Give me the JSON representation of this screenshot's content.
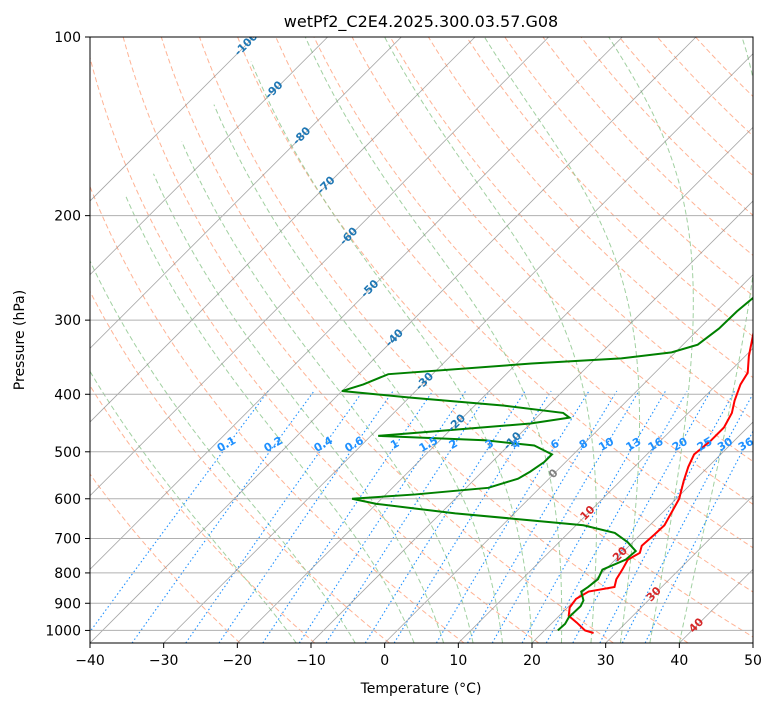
{
  "chart_data": {
    "type": "line",
    "subtype": "skew-t log-p",
    "title": "wetPf2_C2E4.2025.300.03.57.G08",
    "xlabel": "Temperature (°C)",
    "ylabel": "Pressure (hPa)",
    "xlim": [
      -40,
      50
    ],
    "ylim": [
      1050,
      100
    ],
    "x_ticks": [
      -40,
      -30,
      -20,
      -10,
      0,
      10,
      20,
      30,
      40,
      50
    ],
    "x_tick_labels": [
      "−40",
      "−30",
      "−20",
      "−10",
      "0",
      "10",
      "20",
      "30",
      "40",
      "50"
    ],
    "y_ticks": [
      1000,
      900,
      800,
      700,
      600,
      500,
      400,
      300,
      200,
      100
    ],
    "y_tick_labels": [
      "1000",
      "900",
      "800",
      "700",
      "600",
      "500",
      "400",
      "300",
      "200",
      "100"
    ],
    "skew_deg": 45,
    "series": [
      {
        "name": "Temperature",
        "color": "#ff0000",
        "points": [
          [
            1010,
            27.0
          ],
          [
            1000,
            25.5
          ],
          [
            970,
            23.3
          ],
          [
            945,
            21.3
          ],
          [
            915,
            20.3
          ],
          [
            885,
            20.0
          ],
          [
            860,
            20.7
          ],
          [
            845,
            23.6
          ],
          [
            820,
            22.8
          ],
          [
            790,
            22.3
          ],
          [
            760,
            21.7
          ],
          [
            740,
            22.4
          ],
          [
            720,
            21.7
          ],
          [
            690,
            21.9
          ],
          [
            665,
            22.0
          ],
          [
            640,
            21.4
          ],
          [
            600,
            20.4
          ],
          [
            560,
            18.6
          ],
          [
            530,
            17.3
          ],
          [
            505,
            16.4
          ],
          [
            480,
            16.8
          ],
          [
            455,
            16.8
          ],
          [
            430,
            15.9
          ],
          [
            410,
            14.6
          ],
          [
            385,
            13.2
          ],
          [
            368,
            12.6
          ],
          [
            345,
            10.5
          ],
          [
            310,
            7.5
          ],
          [
            280,
            4.6
          ],
          [
            250,
            0.9
          ],
          [
            225,
            -2.8
          ],
          [
            205,
            -6.4
          ],
          [
            190,
            -8.9
          ],
          [
            175,
            -12.2
          ],
          [
            160,
            -15.6
          ],
          [
            150,
            -17.9
          ],
          [
            142,
            -19.6
          ],
          [
            135,
            -20.9
          ],
          [
            128,
            -20.9
          ],
          [
            122,
            -19.7
          ],
          [
            115,
            -20.1
          ],
          [
            108,
            -21.3
          ],
          [
            100,
            -23.0
          ]
        ]
      },
      {
        "name": "Dewpoint",
        "color": "#008000",
        "points": [
          [
            1000,
            21.8
          ],
          [
            975,
            21.9
          ],
          [
            950,
            21.5
          ],
          [
            910,
            21.6
          ],
          [
            890,
            21.2
          ],
          [
            860,
            19.7
          ],
          [
            845,
            20.0
          ],
          [
            820,
            20.3
          ],
          [
            790,
            19.6
          ],
          [
            760,
            21.4
          ],
          [
            735,
            21.6
          ],
          [
            710,
            19.3
          ],
          [
            685,
            16.3
          ],
          [
            665,
            11.0
          ],
          [
            652,
            3.0
          ],
          [
            635,
            -8.0
          ],
          [
            612,
            -20.0
          ],
          [
            600,
            -24.0
          ],
          [
            590,
            -16.0
          ],
          [
            575,
            -7.0
          ],
          [
            555,
            -4.2
          ],
          [
            540,
            -3.5
          ],
          [
            520,
            -2.9
          ],
          [
            505,
            -2.9
          ],
          [
            488,
            -6.5
          ],
          [
            478,
            -14.0
          ],
          [
            470,
            -29.0
          ],
          [
            462,
            -22.0
          ],
          [
            448,
            -10.0
          ],
          [
            438,
            -5.5
          ],
          [
            430,
            -7.0
          ],
          [
            418,
            -16.0
          ],
          [
            405,
            -30.0
          ],
          [
            395,
            -40.0
          ],
          [
            385,
            -38.0
          ],
          [
            370,
            -36.0
          ],
          [
            355,
            -18.0
          ],
          [
            348,
            -6.5
          ],
          [
            340,
            -0.5
          ],
          [
            330,
            2.0
          ],
          [
            310,
            2.7
          ],
          [
            290,
            2.8
          ],
          [
            270,
            3.3
          ],
          [
            250,
            4.9
          ],
          [
            230,
            7.6
          ],
          [
            215,
            9.9
          ],
          [
            202,
            11.0
          ],
          [
            190,
            10.9
          ],
          [
            175,
            10.3
          ],
          [
            160,
            9.6
          ],
          [
            150,
            9.5
          ],
          [
            140,
            10.3
          ],
          [
            132,
            10.6
          ],
          [
            126,
            11.6
          ],
          [
            120,
            13.9
          ],
          [
            115,
            15.8
          ],
          [
            108,
            18.0
          ],
          [
            100,
            21.0
          ]
        ]
      }
    ],
    "isotherm_labels": [
      "-100",
      "-90",
      "-80",
      "-70",
      "-60",
      "-50",
      "-40",
      "-30",
      "-20",
      "-10",
      "0",
      "10",
      "20",
      "30",
      "40"
    ],
    "isotherm_label_positions": [
      {
        "t": -100,
        "p": 103
      },
      {
        "t": -90,
        "p": 123
      },
      {
        "t": -80,
        "p": 147
      },
      {
        "t": -70,
        "p": 178
      },
      {
        "t": -60,
        "p": 217
      },
      {
        "t": -50,
        "p": 266
      },
      {
        "t": -40,
        "p": 322
      },
      {
        "t": -30,
        "p": 381
      },
      {
        "t": -20,
        "p": 448
      },
      {
        "t": -10,
        "p": 480
      },
      {
        "t": 0,
        "p": 545
      },
      {
        "t": 10,
        "p": 635
      },
      {
        "t": 20,
        "p": 745
      },
      {
        "t": 30,
        "p": 870
      },
      {
        "t": 40,
        "p": 982
      }
    ],
    "mixing_ratio_labels": [
      "0.1",
      "0.2",
      "0.4",
      "0.6",
      "1",
      "1.5",
      "2",
      "3",
      "4",
      "6",
      "8",
      "10",
      "13",
      "16",
      "20",
      "25",
      "30",
      "36"
    ],
    "mixing_ratio_values": [
      0.1,
      0.2,
      0.4,
      0.6,
      1,
      1.5,
      2,
      3,
      4,
      6,
      8,
      10,
      13,
      16,
      20,
      25,
      30,
      36
    ],
    "mixing_ratio_label_pressure": 500,
    "isotherm_range": [
      -100,
      50,
      10
    ],
    "dry_adiabat_thetas": [
      250,
      260,
      270,
      280,
      290,
      300,
      310,
      320,
      330,
      340,
      350,
      360,
      370,
      380,
      390,
      400,
      410,
      420,
      430,
      440,
      450
    ],
    "moist_adiabat_starts": [
      -12,
      -4,
      4,
      8,
      12,
      16,
      20,
      24,
      28,
      32,
      36,
      40
    ],
    "colors": {
      "temperature": "#ff0000",
      "dewpoint": "#008000",
      "isotherm_label_cold": "#1f77b4",
      "isotherm_label_zero": "#7f7f7f",
      "isotherm_label_warm": "#d62728",
      "mixing_label": "#1e90ff",
      "dry_adiabat": "#ffa07a",
      "moist_adiabat": "#90c890",
      "mixing_line": "#1e90ff",
      "skewed_isotherm": "#888888",
      "grid": "#b0b0b0"
    }
  }
}
